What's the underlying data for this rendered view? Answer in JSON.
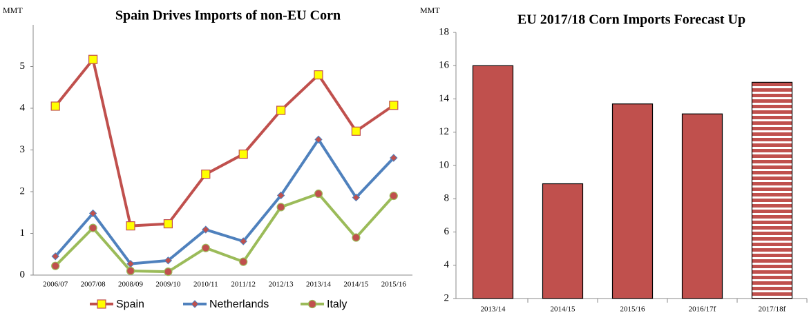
{
  "chart_data": [
    {
      "type": "line",
      "title": "Spain Drives Imports of non-EU Corn",
      "unit": "MMT",
      "categories": [
        "2006/07",
        "2007/08",
        "2008/09",
        "2009/10",
        "2010/11",
        "2011/12",
        "2012/13",
        "2013/14",
        "2014/15",
        "2015/16"
      ],
      "series": [
        {
          "name": "Spain",
          "color": "#c0504d",
          "marker": "square",
          "marker_color": "#ffff00",
          "values": [
            4.05,
            5.17,
            1.18,
            1.23,
            2.42,
            2.9,
            3.95,
            4.8,
            3.45,
            4.07
          ]
        },
        {
          "name": "Netherlands",
          "color": "#4f81bd",
          "marker": "diamond",
          "marker_color": "#c0504d",
          "values": [
            0.45,
            1.48,
            0.27,
            0.35,
            1.09,
            0.81,
            1.91,
            3.25,
            1.86,
            2.81
          ]
        },
        {
          "name": "Italy",
          "color": "#9bbb59",
          "marker": "circle",
          "marker_color": "#c0504d",
          "values": [
            0.22,
            1.13,
            0.1,
            0.08,
            0.65,
            0.32,
            1.63,
            1.95,
            0.9,
            1.9
          ]
        }
      ],
      "ylim": [
        0,
        6
      ],
      "yticks": [
        0,
        1,
        2,
        3,
        4,
        5
      ],
      "legend": "bottom"
    },
    {
      "type": "bar",
      "title": "EU 2017/18 Corn Imports Forecast Up",
      "unit": "MMT",
      "categories": [
        "2013/14",
        "2014/15",
        "2015/16",
        "2016/17f",
        "2017/18f"
      ],
      "values": [
        16,
        8.9,
        13.7,
        13.1,
        15
      ],
      "color": "#c0504d",
      "hatched": [
        false,
        false,
        false,
        false,
        true
      ],
      "ylim": [
        2,
        18
      ],
      "yticks": [
        2,
        4,
        6,
        8,
        10,
        12,
        14,
        16,
        18
      ]
    }
  ]
}
